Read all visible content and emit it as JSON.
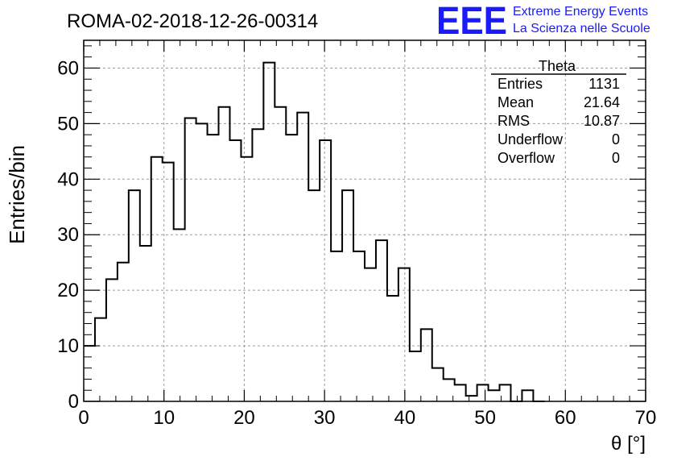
{
  "chart_data": {
    "type": "histogram",
    "title": "ROMA-02-2018-12-26-00314",
    "xlabel": "θ [°]",
    "ylabel": "Entries/bin",
    "xlim": [
      0,
      70
    ],
    "ylim": [
      0,
      65
    ],
    "bin_width": 1.4,
    "grid": true,
    "x_ticks": [
      "0",
      "10",
      "20",
      "30",
      "40",
      "50",
      "60",
      "70"
    ],
    "y_ticks": [
      "0",
      "10",
      "20",
      "30",
      "40",
      "50",
      "60"
    ],
    "bins": [
      {
        "low": 0.0,
        "value": 10
      },
      {
        "low": 1.4,
        "value": 15
      },
      {
        "low": 2.8,
        "value": 22
      },
      {
        "low": 4.2,
        "value": 25
      },
      {
        "low": 5.6,
        "value": 38
      },
      {
        "low": 7.0,
        "value": 28
      },
      {
        "low": 8.4,
        "value": 44
      },
      {
        "low": 9.8,
        "value": 43
      },
      {
        "low": 11.2,
        "value": 31
      },
      {
        "low": 12.6,
        "value": 51
      },
      {
        "low": 14.0,
        "value": 50
      },
      {
        "low": 15.4,
        "value": 48
      },
      {
        "low": 16.8,
        "value": 53
      },
      {
        "low": 18.2,
        "value": 47
      },
      {
        "low": 19.6,
        "value": 44
      },
      {
        "low": 21.0,
        "value": 49
      },
      {
        "low": 22.4,
        "value": 61
      },
      {
        "low": 23.8,
        "value": 53
      },
      {
        "low": 25.2,
        "value": 48
      },
      {
        "low": 26.6,
        "value": 52
      },
      {
        "low": 28.0,
        "value": 38
      },
      {
        "low": 29.4,
        "value": 47
      },
      {
        "low": 30.8,
        "value": 27
      },
      {
        "low": 32.2,
        "value": 38
      },
      {
        "low": 33.6,
        "value": 27
      },
      {
        "low": 35.0,
        "value": 24
      },
      {
        "low": 36.4,
        "value": 29
      },
      {
        "low": 37.8,
        "value": 19
      },
      {
        "low": 39.2,
        "value": 24
      },
      {
        "low": 40.6,
        "value": 9
      },
      {
        "low": 42.0,
        "value": 13
      },
      {
        "low": 43.4,
        "value": 6
      },
      {
        "low": 44.8,
        "value": 4
      },
      {
        "low": 46.2,
        "value": 3
      },
      {
        "low": 47.6,
        "value": 1
      },
      {
        "low": 49.0,
        "value": 3
      },
      {
        "low": 50.4,
        "value": 2
      },
      {
        "low": 51.8,
        "value": 3
      },
      {
        "low": 53.2,
        "value": 0
      },
      {
        "low": 54.6,
        "value": 2
      },
      {
        "low": 56.0,
        "value": 0
      }
    ],
    "stats_box": {
      "name": "Theta",
      "rows": [
        {
          "label": "Entries",
          "value": "1131"
        },
        {
          "label": "Mean",
          "value": "21.64"
        },
        {
          "label": "RMS",
          "value": "10.87"
        },
        {
          "label": "Underflow",
          "value": "0"
        },
        {
          "label": "Overflow",
          "value": "0"
        }
      ]
    }
  },
  "logo": {
    "mark": "EEE",
    "line1": "Extreme Energy Events",
    "line2": "La Scienza nelle Scuole",
    "color": "#1a1aff"
  },
  "colors": {
    "histogram_line": "#000000",
    "grid": "#9a9a9a",
    "frame": "#000000"
  }
}
